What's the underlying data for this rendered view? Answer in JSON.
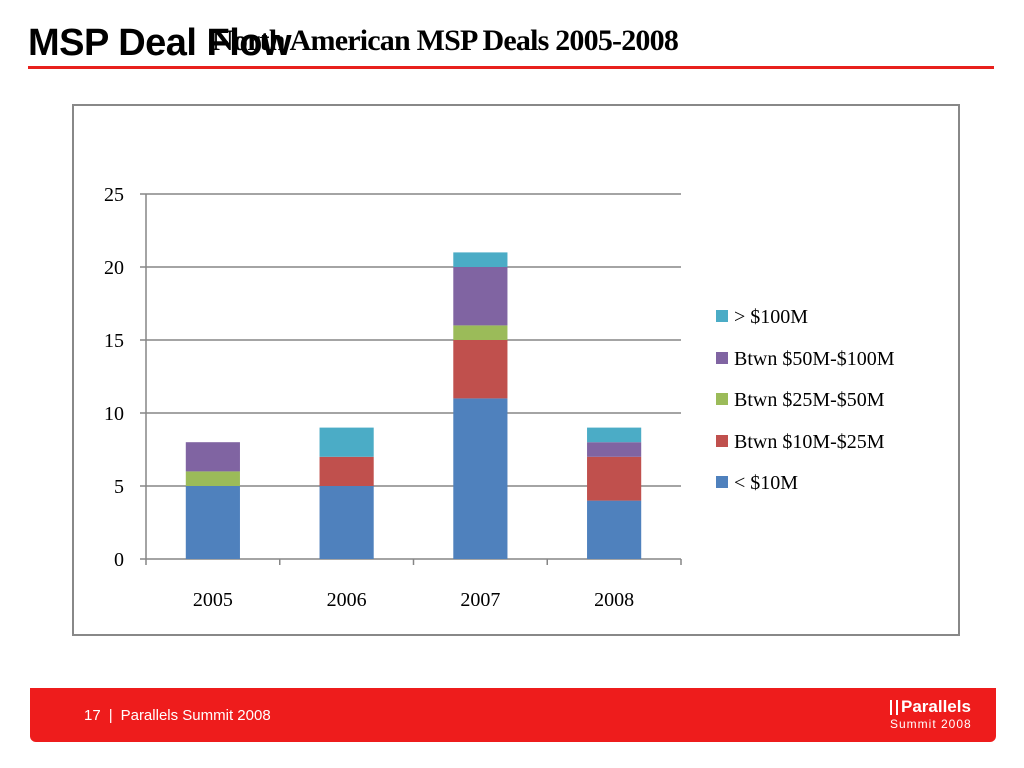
{
  "slide": {
    "title": "MSP Deal Flow",
    "footer": {
      "page_number": "17",
      "separator": "|",
      "text": "Parallels Summit 2008",
      "brand_name": "Parallels",
      "brand_sub": "Summit 2008"
    }
  },
  "chart_data": {
    "type": "bar",
    "stacked": true,
    "title": "North American MSP Deals 2005-2008",
    "xlabel": "",
    "ylabel": "",
    "categories": [
      "2005",
      "2006",
      "2007",
      "2008"
    ],
    "ylim": [
      0,
      25
    ],
    "yticks": [
      "0",
      "5",
      "10",
      "15",
      "20",
      "25"
    ],
    "grid": true,
    "legend_position": "right",
    "series": [
      {
        "name": "< $10M",
        "color": "#4f81bd",
        "values": [
          5,
          5,
          11,
          4
        ]
      },
      {
        "name": "Btwn $10M-$25M",
        "color": "#c0504d",
        "values": [
          0,
          2,
          4,
          3
        ]
      },
      {
        "name": "Btwn $25M-$50M",
        "color": "#9bbb59",
        "values": [
          1,
          0,
          1,
          0
        ]
      },
      {
        "name": "Btwn $50M-$100M",
        "color": "#8064a2",
        "values": [
          2,
          0,
          4,
          1
        ]
      },
      {
        "name": "> $100M",
        "color": "#4bacc6",
        "values": [
          0,
          2,
          1,
          1
        ]
      }
    ]
  }
}
